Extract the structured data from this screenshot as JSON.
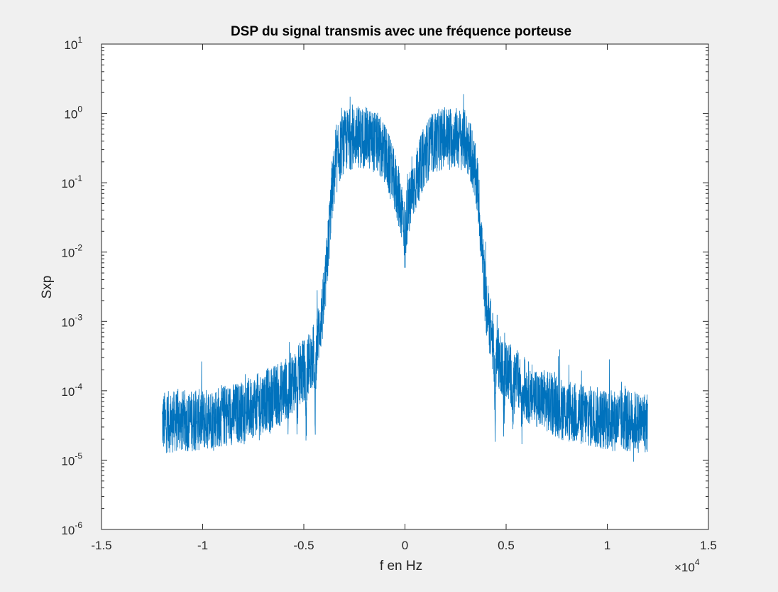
{
  "figure": {
    "background": "#f0f0f0"
  },
  "chart_data": {
    "type": "line",
    "title": "DSP du signal transmis avec une fréquence porteuse",
    "xlabel": "f en Hz",
    "ylabel": "Sxp",
    "x_multiplier_label": "×10",
    "x_multiplier_exponent": "4",
    "x_scale_factor": 10000,
    "xlim": [
      -1.5,
      1.5
    ],
    "ylim": [
      1e-06,
      10
    ],
    "y_scale": "log",
    "grid": false,
    "x_ticks": [
      {
        "value": -1.5,
        "label": "-1.5"
      },
      {
        "value": -1,
        "label": "-1"
      },
      {
        "value": -0.5,
        "label": "-0.5"
      },
      {
        "value": 0,
        "label": "0"
      },
      {
        "value": 0.5,
        "label": "0.5"
      },
      {
        "value": 1,
        "label": "1"
      },
      {
        "value": 1.5,
        "label": "1.5"
      }
    ],
    "y_ticks": [
      {
        "value": 1e-06,
        "base": "10",
        "exponent": "-6"
      },
      {
        "value": 1e-05,
        "base": "10",
        "exponent": "-5"
      },
      {
        "value": 0.0001,
        "base": "10",
        "exponent": "-4"
      },
      {
        "value": 0.001,
        "base": "10",
        "exponent": "-3"
      },
      {
        "value": 0.01,
        "base": "10",
        "exponent": "-2"
      },
      {
        "value": 0.1,
        "base": "10",
        "exponent": "-1"
      },
      {
        "value": 1,
        "base": "10",
        "exponent": "0"
      },
      {
        "value": 10,
        "base": "10",
        "exponent": "1"
      }
    ],
    "series": [
      {
        "color": "#0072bd",
        "x_range": [
          -1.2,
          1.2
        ],
        "envelope_x": [
          0,
          0.002,
          0.01,
          0.03,
          0.05,
          0.08,
          0.1,
          0.14,
          0.2,
          0.25,
          0.3,
          0.33,
          0.36,
          0.38,
          0.4,
          0.42,
          0.44,
          0.46,
          0.5,
          0.6,
          0.8,
          1.0,
          1.2
        ],
        "envelope_y": [
          0.012,
          0.02,
          0.035,
          0.06,
          0.1,
          0.18,
          0.26,
          0.38,
          0.45,
          0.45,
          0.4,
          0.25,
          0.08,
          0.012,
          0.0018,
          0.0009,
          0.0004,
          0.0003,
          0.0002,
          0.0001,
          5e-05,
          3.8e-05,
          3.5e-05
        ],
        "notch_centers": [
          0.4445,
          0.4886,
          0.533,
          0.578,
          0.622,
          0.667,
          0.711,
          0.756
        ],
        "notch_depth_values": [
          3e-05,
          3e-05,
          4e-05,
          4e-05,
          5e-05,
          5e-05,
          6e-05,
          6e-05
        ],
        "center_min": 0.006,
        "peak_max": 1.9
      }
    ]
  }
}
